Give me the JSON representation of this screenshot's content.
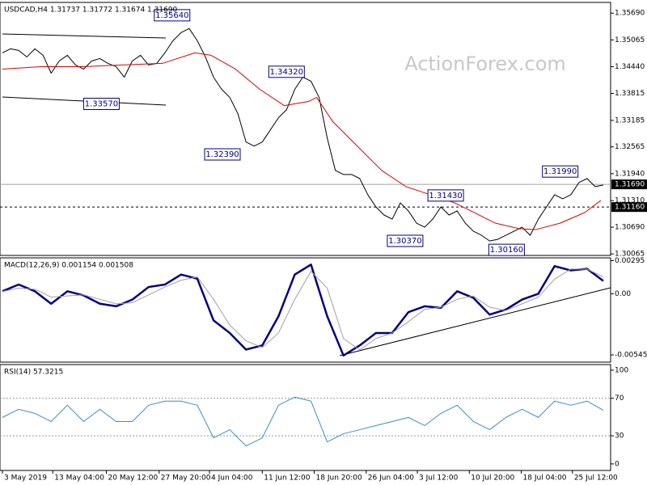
{
  "chart_data": [
    {
      "type": "line",
      "title": "USDCAD,H4  1.31737 1.31772 1.31674 1.31690",
      "watermark": "ActionForex.com",
      "xlim": [
        -0.3,
        74.9
      ],
      "ylim": [
        1.3003,
        1.3594
      ],
      "yticks": [
        {
          "value": 1.3569,
          "label": "1.35690"
        },
        {
          "value": 1.35065,
          "label": "1.35065"
        },
        {
          "value": 1.3444,
          "label": "1.34440"
        },
        {
          "value": 1.33815,
          "label": "1.33815"
        },
        {
          "value": 1.33185,
          "label": "1.33185"
        },
        {
          "value": 1.32565,
          "label": "1.32565"
        },
        {
          "value": 1.3194,
          "label": "1.31940"
        },
        {
          "value": 1.3131,
          "label": "1.31310"
        },
        {
          "value": 1.3069,
          "label": "1.30690"
        },
        {
          "value": 1.30065,
          "label": "1.30065"
        }
      ],
      "series": [
        {
          "color": "#000000",
          "x": [
            0,
            1,
            2,
            3,
            4,
            5,
            6,
            7,
            8,
            9,
            10,
            11,
            12,
            13,
            14,
            15,
            16,
            17,
            18,
            19,
            20,
            21,
            22,
            23,
            24,
            25,
            26,
            27,
            28,
            29,
            30,
            31,
            32,
            33,
            34,
            35,
            36,
            37,
            38,
            39,
            40,
            41,
            42,
            43,
            44,
            45,
            46,
            47,
            48,
            49,
            50,
            51,
            52,
            53,
            54,
            55,
            56,
            57,
            58,
            59,
            60,
            61,
            62,
            63,
            64,
            65,
            66,
            67,
            68,
            69,
            70,
            71,
            72,
            73,
            74
          ],
          "values": [
            1.34762,
            1.34857,
            1.34819,
            1.34667,
            1.34857,
            1.34705,
            1.34288,
            1.34573,
            1.34705,
            1.34478,
            1.34383,
            1.34573,
            1.34629,
            1.34516,
            1.3444,
            1.34194,
            1.34573,
            1.34705,
            1.34478,
            1.34516,
            1.34762,
            1.35046,
            1.35235,
            1.3533,
            1.35046,
            1.34667,
            1.34194,
            1.3391,
            1.3372,
            1.33341,
            1.32679,
            1.32584,
            1.32679,
            1.32963,
            1.33247,
            1.33436,
            1.3391,
            1.34194,
            1.34099,
            1.3372,
            1.32773,
            1.32016,
            1.31921,
            1.31921,
            1.31826,
            1.31447,
            1.31163,
            1.30974,
            1.30879,
            1.31258,
            1.31069,
            1.30785,
            1.3069,
            1.30879,
            1.31163,
            1.30974,
            1.31069,
            1.30785,
            1.30595,
            1.305,
            1.30368,
            1.30406,
            1.305,
            1.30595,
            1.3069,
            1.305,
            1.30879,
            1.31163,
            1.31447,
            1.31353,
            1.31447,
            1.31732,
            1.31826,
            1.31637,
            1.31675
          ]
        },
        {
          "color": "#e00000",
          "x": [
            0,
            4.7,
            9.7,
            14.7,
            19.7,
            23.7,
            25.7,
            28.7,
            31.7,
            34.7,
            37.7,
            38.7,
            40.7,
            43.7,
            46.7,
            49.7,
            52.7,
            55.7,
            57.7,
            60.7,
            63.7,
            65.7,
            68.7,
            71.7,
            73.7
          ],
          "values": [
            1.34383,
            1.3444,
            1.3444,
            1.34478,
            1.34516,
            1.34762,
            1.34705,
            1.34383,
            1.3391,
            1.33531,
            1.33626,
            1.3372,
            1.33152,
            1.32584,
            1.32016,
            1.31637,
            1.31447,
            1.31258,
            1.31069,
            1.30785,
            1.30652,
            1.30633,
            1.30785,
            1.31031,
            1.31315
          ]
        }
      ],
      "annotations": [
        {
          "x": 18.7,
          "value": 1.3564,
          "label": "1.35640"
        },
        {
          "x": 10,
          "value": 1.3357,
          "label": "1.33570"
        },
        {
          "x": 24.9,
          "value": 1.3239,
          "label": "1.32390"
        },
        {
          "x": 32.8,
          "value": 1.3432,
          "label": "1.34320"
        },
        {
          "x": 52.4,
          "value": 1.3143,
          "label": "1.31430"
        },
        {
          "x": 47.4,
          "value": 1.3037,
          "label": "1.30370"
        },
        {
          "x": 59.9,
          "value": 1.3016,
          "label": "1.30160"
        },
        {
          "x": 66.5,
          "value": 1.3199,
          "label": "1.31990"
        }
      ],
      "hlines": [
        {
          "value": 1.3169,
          "label": "1.31690",
          "style": "solid"
        },
        {
          "value": 1.3116,
          "label": "1.31160",
          "style": "dashed"
        }
      ]
    },
    {
      "type": "line",
      "title": "MACD(12,26,9) 0.001154 0.001508",
      "xlim": [
        -0.3,
        74.9
      ],
      "ylim": [
        -0.0061,
        0.0032
      ],
      "yticks": [
        0.00295,
        {
          "value": 0,
          "label": "0.00"
        },
        -0.005455
      ],
      "series": [
        {
          "color": "#000080",
          "width": 2.5,
          "x": [
            0,
            2,
            4,
            6,
            8,
            10,
            12,
            14,
            16,
            18,
            20,
            22,
            24,
            26,
            28,
            30,
            32,
            34,
            36,
            38,
            40,
            42,
            44,
            46,
            48,
            50,
            52,
            54,
            56,
            58,
            60,
            62,
            64,
            66,
            68,
            70,
            72,
            74
          ],
          "values": [
            0.00022,
            0.00082,
            0.00022,
            -0.00089,
            0.00022,
            -0.00015,
            -0.00089,
            -0.00112,
            -0.00052,
            0.0006,
            0.00082,
            0.00171,
            0.00134,
            -0.00238,
            -0.0035,
            -0.00498,
            -0.00461,
            -0.00201,
            0.00171,
            0.0026,
            -0.00201,
            -0.00551,
            -0.00461,
            -0.0035,
            -0.0035,
            -0.00164,
            -0.00112,
            -0.00126,
            0.00022,
            -0.00037,
            -0.00186,
            -0.00141,
            -0.00052,
            0,
            0.00246,
            0.00208,
            0.00223,
            0.00115
          ]
        },
        {
          "color": "#a0a0a0",
          "width": 1,
          "x": [
            0,
            2,
            4,
            6,
            8,
            10,
            12,
            14,
            16,
            18,
            20,
            22,
            24,
            26,
            28,
            30,
            32,
            34,
            36,
            38,
            40,
            42,
            44,
            46,
            48,
            50,
            52,
            54,
            56,
            58,
            60,
            62,
            64,
            66,
            68,
            70,
            72,
            74
          ],
          "values": [
            0.0002,
            0.0005,
            0.0004,
            -0.0003,
            -0.0002,
            -0.0001,
            -0.0005,
            -0.0009,
            -0.0008,
            -0.0001,
            0.0006,
            0.0012,
            0.0015,
            -0.0005,
            -0.0028,
            -0.0042,
            -0.0048,
            -0.0035,
            -0.0005,
            0.002,
            0.0005,
            -0.004,
            -0.005,
            -0.004,
            -0.0035,
            -0.0025,
            -0.0014,
            -0.0012,
            -0.0005,
            -0.0002,
            -0.0012,
            -0.0015,
            -0.0009,
            -0.0003,
            0.0013,
            0.0022,
            0.0022,
            0.0015
          ]
        }
      ]
    },
    {
      "type": "line",
      "title": "RSI(14) 57.3215",
      "xlim": [
        -0.3,
        74.9
      ],
      "ylim": [
        -7,
        106
      ],
      "yticks": [
        100,
        70,
        30,
        0
      ],
      "levels": [
        70,
        30
      ],
      "series": [
        {
          "color": "#3c8cc8",
          "width": 1,
          "x": [
            0,
            2,
            4,
            6,
            8,
            10,
            12,
            14,
            16,
            18,
            20,
            22,
            24,
            26,
            28,
            30,
            32,
            34,
            36,
            38,
            40,
            42,
            44,
            46,
            48,
            50,
            52,
            54,
            56,
            58,
            60,
            62,
            64,
            66,
            68,
            70,
            72,
            74
          ],
          "values": [
            49.6,
            58.3,
            53.9,
            45.2,
            62.6,
            45.2,
            58.3,
            45.2,
            45.2,
            62.6,
            67,
            67,
            62.6,
            27.8,
            36.5,
            19.1,
            27.8,
            62.6,
            71.3,
            67,
            23.5,
            32.2,
            36.5,
            40.9,
            45.2,
            49.6,
            40.9,
            53.9,
            62.6,
            45.2,
            36.5,
            49.6,
            58.3,
            49.6,
            67,
            62.6,
            67,
            57.3
          ]
        }
      ],
      "xticks": [
        {
          "value": 0,
          "label": "3 May 2019"
        },
        {
          "value": 6.2,
          "label": "13 May 04:00"
        },
        {
          "value": 12.8,
          "label": "20 May 12:00"
        },
        {
          "value": 19.3,
          "label": "27 May 20:00"
        },
        {
          "value": 25.5,
          "label": "4 Jun 04:00"
        },
        {
          "value": 32,
          "label": "11 Jun 12:00"
        },
        {
          "value": 38.4,
          "label": "18 Jun 20:00"
        },
        {
          "value": 44.8,
          "label": "26 Jun 04:00"
        },
        {
          "value": 51.1,
          "label": "3 Jul 12:00"
        },
        {
          "value": 57.5,
          "label": "10 Jul 20:00"
        },
        {
          "value": 63.9,
          "label": "18 Jul 04:00"
        },
        {
          "value": 70.2,
          "label": "25 Jul 12:00"
        }
      ]
    }
  ]
}
